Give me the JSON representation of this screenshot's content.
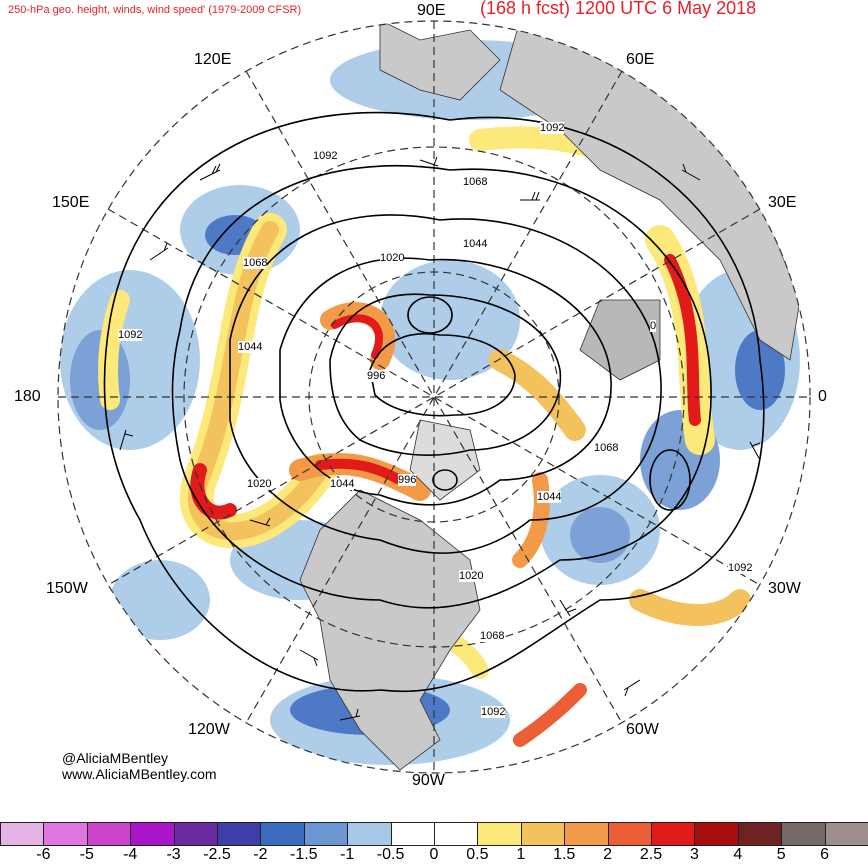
{
  "header": {
    "subtitle": "250-hPa geo. height, winds, wind speed' (1979-2009 CFSR)",
    "forecast": "(168 h fcst) 1200 UTC 6 May 2018"
  },
  "longitude_labels": {
    "n90e": "90E",
    "n60e": "60E",
    "n120e": "120E",
    "n30e": "30E",
    "n150e": "150E",
    "n180": "180",
    "n0": "0",
    "n150w": "150W",
    "n30w": "30W",
    "n120w": "120W",
    "n60w": "60W",
    "n90w": "90W"
  },
  "contour_labels": [
    "1092",
    "1092",
    "1068",
    "1044",
    "1020",
    "1068",
    "1092",
    "1044",
    "996",
    "996",
    "1044",
    "1020",
    "1068",
    "1044",
    "1020",
    "1068",
    "1092",
    "1092",
    "0"
  ],
  "credit": {
    "handle": "@AliciaMBentley",
    "site": "www.AliciaMBentley.com"
  },
  "colorbar": {
    "colors": [
      "#e6b3e6",
      "#e077e0",
      "#cc44cc",
      "#a916c9",
      "#6a2aa0",
      "#3e3ea8",
      "#3b6bc0",
      "#6d97d2",
      "#a6c8e6",
      "#ffffff",
      "#ffffff",
      "#fde87a",
      "#f4c25c",
      "#f29a48",
      "#ec5e36",
      "#e21a1a",
      "#a80c0c",
      "#6e2222",
      "#756967",
      "#9c8f8d"
    ],
    "ticks": [
      "-6",
      "-5",
      "-4",
      "-3",
      "-2.5",
      "-2",
      "-1.5",
      "-1",
      "-0.5",
      "0",
      "0.5",
      "1",
      "1.5",
      "2",
      "2.5",
      "3",
      "4",
      "5",
      "6"
    ]
  }
}
